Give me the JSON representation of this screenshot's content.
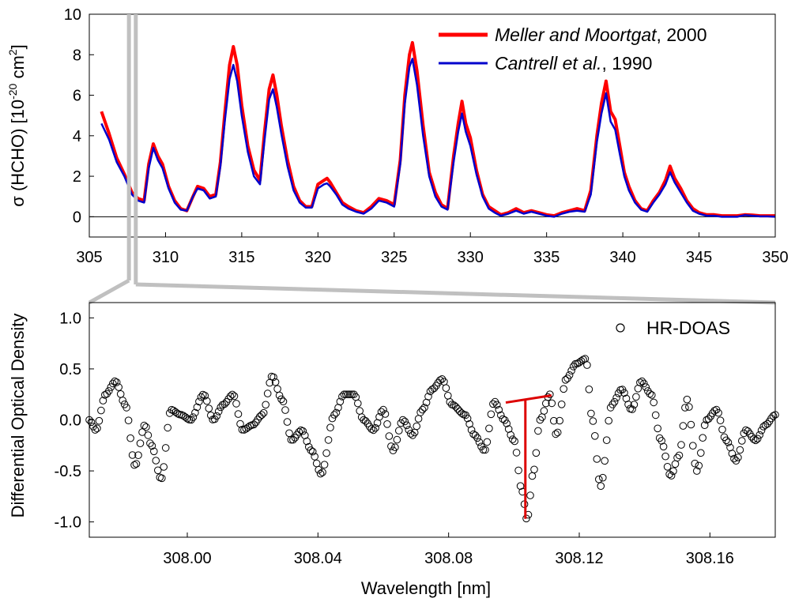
{
  "colors": {
    "meller": "#ff0000",
    "cantrell": "#0000cc",
    "zoom_guide": "#c0c0c0",
    "annotation": "#dd0000",
    "markers": "#000000"
  },
  "chart_data": [
    {
      "type": "line",
      "ylabel": {
        "main": "σ (HCHO) [10",
        "exp1": "-20",
        "mid": " cm",
        "exp2": "2",
        "end": "]"
      },
      "xlim": [
        305,
        350
      ],
      "ylim": [
        -1,
        10
      ],
      "x_ticks": [
        305,
        310,
        315,
        320,
        325,
        330,
        335,
        340,
        345,
        350
      ],
      "y_ticks": [
        0,
        2,
        4,
        6,
        8,
        10
      ],
      "zero_line": true,
      "legend_position": "top-right",
      "legend": [
        {
          "name_italic": "Meller and Moortgat",
          "name_rest": ", 2000"
        },
        {
          "name_italic": "Cantrell et al.",
          "name_rest": ", 1990"
        }
      ],
      "series": [
        {
          "x": [
            305.8,
            306.3,
            306.8,
            307.3,
            307.8,
            308.2,
            308.6,
            308.9,
            309.2,
            309.5,
            309.8,
            310.2,
            310.6,
            311.0,
            311.4,
            311.8,
            312.1,
            312.5,
            312.9,
            313.3,
            313.6,
            313.9,
            314.2,
            314.45,
            314.7,
            315.0,
            315.4,
            315.8,
            316.2,
            316.5,
            316.8,
            317.05,
            317.3,
            317.6,
            318.0,
            318.4,
            318.8,
            319.2,
            319.6,
            320.0,
            320.4,
            320.6,
            320.8,
            321.2,
            321.6,
            322.0,
            322.5,
            323.0,
            323.5,
            324.0,
            324.5,
            325.0,
            325.4,
            325.7,
            326.0,
            326.2,
            326.5,
            326.9,
            327.3,
            327.7,
            328.1,
            328.5,
            328.9,
            329.2,
            329.45,
            329.7,
            330.0,
            330.4,
            330.8,
            331.2,
            331.6,
            332.0,
            332.5,
            333.0,
            333.5,
            334.0,
            334.5,
            335.0,
            335.5,
            336.0,
            336.5,
            337.0,
            337.5,
            337.9,
            338.3,
            338.6,
            338.9,
            339.2,
            339.5,
            339.8,
            340.1,
            340.4,
            340.8,
            341.2,
            341.6,
            342.0,
            342.4,
            342.8,
            343.1,
            343.4,
            343.8,
            344.2,
            344.6,
            345.0,
            345.5,
            346.0,
            346.5,
            347.0,
            347.5,
            348.0,
            348.5,
            349.0,
            349.5,
            350.0
          ],
          "values": [
            5.2,
            4.1,
            2.9,
            2.1,
            1.2,
            0.9,
            0.8,
            2.6,
            3.6,
            3.0,
            2.6,
            1.5,
            0.8,
            0.4,
            0.3,
            1.0,
            1.5,
            1.4,
            1.0,
            1.1,
            2.7,
            5.2,
            7.5,
            8.4,
            7.5,
            5.5,
            3.5,
            2.3,
            1.8,
            4.2,
            6.3,
            7.0,
            6.0,
            4.5,
            2.8,
            1.5,
            0.8,
            0.5,
            0.5,
            1.6,
            1.8,
            1.9,
            1.7,
            1.2,
            0.7,
            0.5,
            0.3,
            0.2,
            0.5,
            0.9,
            0.8,
            0.6,
            2.8,
            6.0,
            8.0,
            8.6,
            7.2,
            4.5,
            2.2,
            1.2,
            0.6,
            0.4,
            3.0,
            4.6,
            5.7,
            4.6,
            3.9,
            2.3,
            1.1,
            0.5,
            0.3,
            0.1,
            0.2,
            0.4,
            0.2,
            0.3,
            0.2,
            0.1,
            0.05,
            0.2,
            0.3,
            0.4,
            0.3,
            1.3,
            4.0,
            5.6,
            6.7,
            5.2,
            4.8,
            3.5,
            2.2,
            1.5,
            0.8,
            0.4,
            0.3,
            0.8,
            1.2,
            1.8,
            2.5,
            1.9,
            1.4,
            0.8,
            0.4,
            0.2,
            0.1,
            0.1,
            0.05,
            0.05,
            0.05,
            0.1,
            0.08,
            0.05,
            0.05,
            0.05
          ]
        },
        {
          "x": [
            305.8,
            306.3,
            306.8,
            307.3,
            307.8,
            308.2,
            308.6,
            308.9,
            309.2,
            309.5,
            309.8,
            310.2,
            310.6,
            311.0,
            311.4,
            311.8,
            312.1,
            312.5,
            312.9,
            313.3,
            313.6,
            313.9,
            314.2,
            314.45,
            314.7,
            315.0,
            315.4,
            315.8,
            316.2,
            316.5,
            316.8,
            317.05,
            317.3,
            317.6,
            318.0,
            318.4,
            318.8,
            319.2,
            319.6,
            320.0,
            320.4,
            320.6,
            320.8,
            321.2,
            321.6,
            322.0,
            322.5,
            323.0,
            323.5,
            324.0,
            324.5,
            325.0,
            325.4,
            325.7,
            326.0,
            326.2,
            326.5,
            326.9,
            327.3,
            327.7,
            328.1,
            328.5,
            328.9,
            329.2,
            329.45,
            329.7,
            330.0,
            330.4,
            330.8,
            331.2,
            331.6,
            332.0,
            332.5,
            333.0,
            333.5,
            334.0,
            334.5,
            335.0,
            335.5,
            336.0,
            336.5,
            337.0,
            337.5,
            337.9,
            338.3,
            338.6,
            338.9,
            339.2,
            339.5,
            339.8,
            340.1,
            340.4,
            340.8,
            341.2,
            341.6,
            342.0,
            342.4,
            342.8,
            343.1,
            343.4,
            343.8,
            344.2,
            344.6,
            345.0,
            345.5,
            346.0,
            346.5,
            347.0,
            347.5,
            348.0,
            348.5,
            349.0,
            349.5,
            350.0
          ],
          "values": [
            4.6,
            3.8,
            2.7,
            2.0,
            1.1,
            0.8,
            0.7,
            2.4,
            3.4,
            2.8,
            2.4,
            1.4,
            0.7,
            0.35,
            0.3,
            1.0,
            1.4,
            1.3,
            0.9,
            1.0,
            2.5,
            4.8,
            6.8,
            7.5,
            6.7,
            5.0,
            3.2,
            2.0,
            1.6,
            3.8,
            5.8,
            6.3,
            5.4,
            4.1,
            2.5,
            1.3,
            0.7,
            0.45,
            0.45,
            1.4,
            1.6,
            1.65,
            1.5,
            1.1,
            0.6,
            0.4,
            0.25,
            0.15,
            0.4,
            0.8,
            0.7,
            0.5,
            2.6,
            5.6,
            7.4,
            7.8,
            6.5,
            4.0,
            2.0,
            1.0,
            0.5,
            0.35,
            2.7,
            4.2,
            5.1,
            4.2,
            3.5,
            2.1,
            1.0,
            0.4,
            0.2,
            0.05,
            0.15,
            0.3,
            0.15,
            0.25,
            0.15,
            0.05,
            0.0,
            0.15,
            0.25,
            0.3,
            0.25,
            1.1,
            3.7,
            5.1,
            6.1,
            4.7,
            4.3,
            3.1,
            2.0,
            1.3,
            0.7,
            0.35,
            0.25,
            0.7,
            1.1,
            1.6,
            2.2,
            1.7,
            1.2,
            0.7,
            0.3,
            0.15,
            0.05,
            0.05,
            0.0,
            0.0,
            0.0,
            0.08,
            0.05,
            0.02,
            0.02,
            0.0
          ]
        }
      ]
    },
    {
      "type": "scatter",
      "xlabel": "Wavelength [nm]",
      "ylabel": "Differential Optical Density",
      "xlim": [
        307.97,
        308.18
      ],
      "ylim": [
        -1.15,
        1.15
      ],
      "x_ticks": [
        "308.00",
        "308.04",
        "308.08",
        "308.12",
        "308.16"
      ],
      "x_tick_values": [
        308.0,
        308.04,
        308.08,
        308.12,
        308.16
      ],
      "y_ticks": [
        "1.0",
        "0.5",
        "0.0",
        "-0.5",
        "-1.0"
      ],
      "y_tick_values": [
        1.0,
        0.5,
        0.0,
        -0.5,
        -1.0
      ],
      "legend_position": "top-right",
      "legend": [
        {
          "name": "HR-DOAS"
        }
      ],
      "point_spacing": 0.0006,
      "series": [
        {
          "name": "HR-DOAS",
          "x": [
            307.97,
            307.972,
            307.975,
            307.978,
            307.981,
            307.984,
            307.987,
            307.989,
            307.992,
            307.995,
            307.998,
            308.001,
            308.005,
            308.008,
            308.011,
            308.014,
            308.017,
            308.02,
            308.023,
            308.026,
            308.029,
            308.032,
            308.035,
            308.038,
            308.041,
            308.045,
            308.048,
            308.051,
            308.054,
            308.057,
            308.06,
            308.063,
            308.066,
            308.069,
            308.072,
            308.075,
            308.078,
            308.081,
            308.085,
            308.088,
            308.091,
            308.094,
            308.097,
            308.1,
            308.1025,
            308.104,
            308.106,
            308.108,
            308.111,
            308.113,
            308.116,
            308.119,
            308.122,
            308.124,
            308.1265,
            308.13,
            308.133,
            308.136,
            308.139,
            308.142,
            308.145,
            308.148,
            308.1505,
            308.153,
            308.156,
            308.159,
            308.162,
            308.165,
            308.168,
            308.171,
            308.174,
            308.177,
            308.18
          ],
          "values": [
            0.0,
            -0.1,
            0.25,
            0.38,
            0.15,
            -0.45,
            -0.05,
            -0.25,
            -0.58,
            0.1,
            0.05,
            0.0,
            0.25,
            0.0,
            0.15,
            0.25,
            -0.1,
            -0.05,
            0.05,
            0.43,
            0.2,
            -0.2,
            -0.1,
            -0.3,
            -0.53,
            0.05,
            0.25,
            0.25,
            0.0,
            -0.1,
            0.1,
            -0.3,
            0.0,
            -0.15,
            0.1,
            0.3,
            0.4,
            0.15,
            0.05,
            -0.15,
            -0.3,
            0.18,
            0.0,
            -0.2,
            -0.7,
            -0.98,
            -0.5,
            0.0,
            0.25,
            -0.15,
            0.4,
            0.55,
            0.6,
            0.0,
            -0.65,
            0.15,
            0.3,
            0.1,
            0.38,
            0.25,
            -0.2,
            -0.55,
            -0.35,
            0.2,
            -0.5,
            0.0,
            0.1,
            -0.2,
            -0.4,
            -0.1,
            -0.2,
            -0.05,
            0.05
          ]
        }
      ],
      "annotation": {
        "peak_x": 308.1035,
        "peak_y": -0.97,
        "line_left": [
          308.0975,
          0.17
        ],
        "line_right": [
          308.1115,
          0.24
        ],
        "line_top_y": 0.2
      }
    }
  ],
  "zoom_window": {
    "x_from": 307.6,
    "x_to": 308.05
  }
}
